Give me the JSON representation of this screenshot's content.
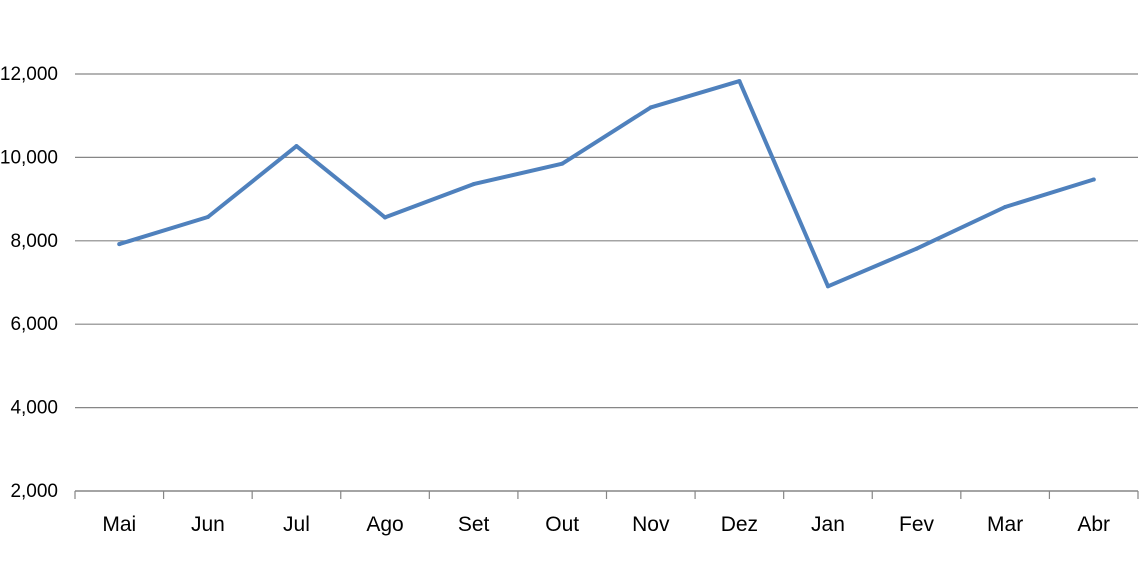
{
  "chart_data": {
    "type": "line",
    "categories": [
      "Mai",
      "Jun",
      "Jul",
      "Ago",
      "Set",
      "Out",
      "Nov",
      "Dez",
      "Jan",
      "Fev",
      "Mar",
      "Abr"
    ],
    "series": [
      {
        "values": [
          7920,
          8570,
          10270,
          8560,
          9360,
          9850,
          11200,
          11830,
          6910,
          7810,
          8810,
          9470
        ]
      }
    ],
    "yticks": [
      "2,000",
      "4,000",
      "6,000",
      "8,000",
      "10,000",
      "12,000"
    ],
    "ylim": [
      2000,
      12000
    ],
    "grid": "horizontal",
    "line_color": "#4F81BD",
    "title": "",
    "xlabel": "",
    "ylabel": ""
  }
}
